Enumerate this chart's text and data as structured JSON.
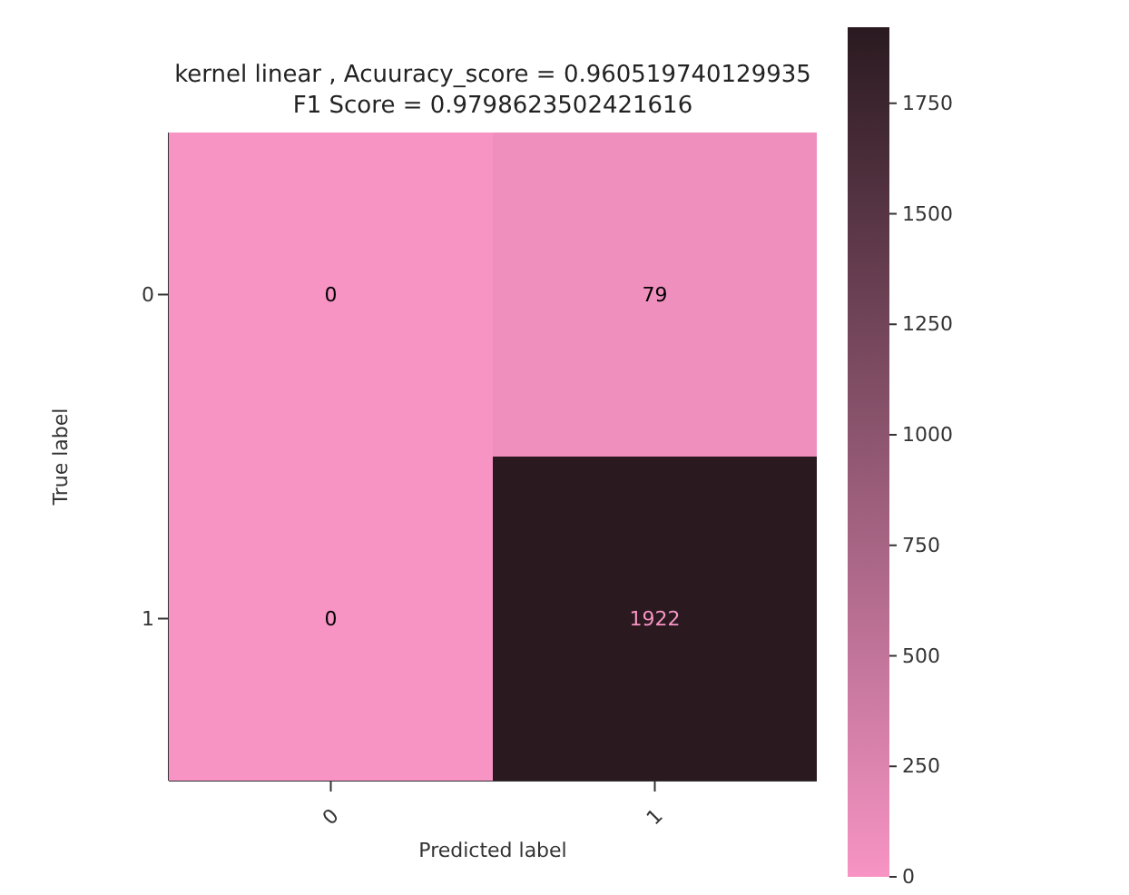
{
  "chart_data": {
    "type": "heatmap",
    "title": "kernel linear , Acuuracy_score = 0.960519740129935\nF1 Score = 0.9798623502421616",
    "xlabel": "Predicted label",
    "ylabel": "True label",
    "categories": [
      "0",
      "1"
    ],
    "y_categories": [
      "0",
      "1"
    ],
    "cells": [
      [
        0,
        79
      ],
      [
        0,
        1922
      ]
    ],
    "clim": [
      0,
      1922
    ],
    "cticks": [
      0,
      250,
      500,
      750,
      1000,
      1250,
      1500,
      1750
    ],
    "data_labels": true
  }
}
